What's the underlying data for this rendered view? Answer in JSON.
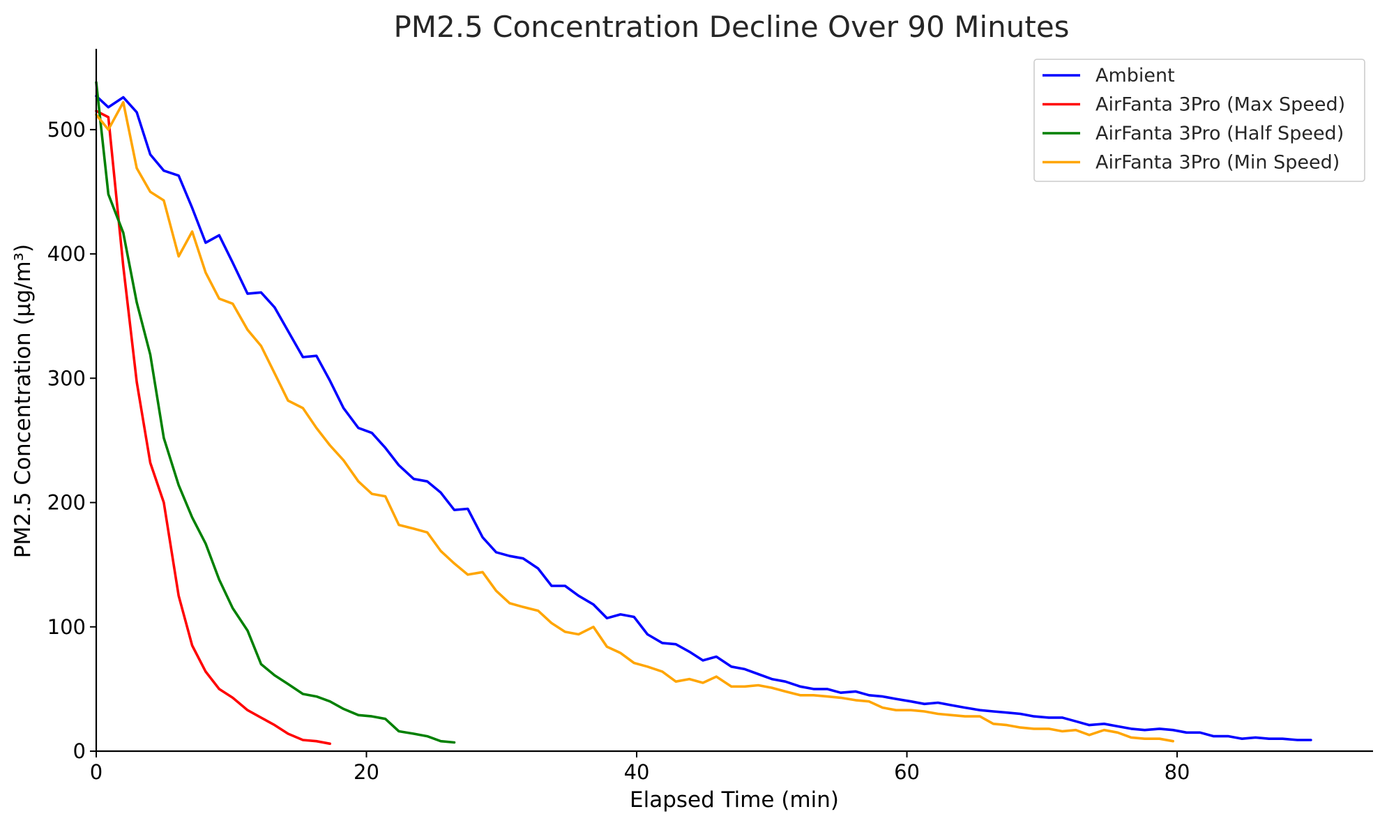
{
  "chart_data": {
    "type": "line",
    "title": "PM2.5 Concentration Decline Over 90 Minutes",
    "xlabel": "Elapsed Time (min)",
    "ylabel": "PM2.5 Concentration (µg/m³)",
    "xlim": [
      0,
      94.5
    ],
    "ylim": [
      0,
      565
    ],
    "xticks": [
      0,
      20,
      40,
      60,
      80
    ],
    "yticks": [
      0,
      100,
      200,
      300,
      400,
      500
    ],
    "grid": false,
    "legend_position": "top-right",
    "series": [
      {
        "name": "Ambient",
        "color": "#0000ff",
        "x": [
          0,
          0.9,
          2.0,
          3.0,
          4.0,
          5.0,
          6.1,
          7.1,
          8.1,
          9.1,
          10.1,
          11.2,
          12.2,
          13.2,
          14.2,
          15.3,
          16.3,
          17.3,
          18.3,
          19.4,
          20.4,
          21.4,
          22.4,
          23.5,
          24.5,
          25.5,
          26.5,
          27.5,
          28.6,
          29.6,
          30.6,
          31.6,
          32.7,
          33.7,
          34.7,
          35.7,
          36.8,
          37.8,
          38.8,
          39.8,
          40.8,
          41.9,
          42.9,
          43.9,
          44.9,
          45.9,
          47.0,
          48.0,
          49.0,
          50.0,
          51.0,
          52.1,
          53.1,
          54.1,
          55.1,
          56.2,
          57.2,
          58.2,
          59.2,
          60.3,
          61.3,
          62.3,
          63.3,
          64.3,
          65.4,
          66.4,
          67.4,
          68.4,
          69.4,
          70.5,
          71.5,
          72.5,
          73.5,
          74.6,
          75.6,
          76.6,
          77.6,
          78.7,
          79.7,
          80.7,
          81.7,
          82.7,
          83.8,
          84.8,
          85.8,
          86.8,
          87.8,
          88.9,
          89.9
        ],
        "values": [
          527,
          518,
          526,
          514,
          480,
          467,
          463,
          437,
          409,
          415,
          393,
          368,
          369,
          357,
          338,
          317,
          318,
          298,
          276,
          260,
          256,
          244,
          230,
          219,
          217,
          208,
          194,
          195,
          172,
          160,
          157,
          155,
          147,
          133,
          133,
          125,
          118,
          107,
          110,
          108,
          94,
          87,
          86,
          80,
          73,
          76,
          68,
          66,
          62,
          58,
          56,
          52,
          50,
          50,
          47,
          48,
          45,
          44,
          42,
          40,
          38,
          39,
          37,
          35,
          33,
          32,
          31,
          30,
          28,
          27,
          27,
          24,
          21,
          22,
          20,
          18,
          17,
          18,
          17,
          15,
          15,
          12,
          12,
          10,
          11,
          10,
          10,
          9,
          9
        ]
      },
      {
        "name": "AirFanta 3Pro (Max Speed)",
        "color": "#ff0000",
        "x": [
          0,
          0.9,
          2.0,
          3.0,
          4.0,
          5.0,
          6.1,
          7.1,
          8.1,
          9.1,
          10.1,
          11.2,
          12.2,
          13.2,
          14.2,
          15.3,
          16.3,
          17.3
        ],
        "values": [
          515,
          510,
          390,
          297,
          232,
          200,
          125,
          85,
          64,
          50,
          43,
          33,
          27,
          21,
          14,
          9,
          8,
          6
        ]
      },
      {
        "name": "AirFanta 3Pro (Half Speed)",
        "color": "#008000",
        "x": [
          0,
          0.9,
          2.0,
          3.0,
          4.0,
          5.0,
          6.1,
          7.1,
          8.1,
          9.1,
          10.1,
          11.2,
          12.2,
          13.2,
          14.2,
          15.3,
          16.3,
          17.3,
          18.3,
          19.4,
          20.4,
          21.4,
          22.4,
          23.5,
          24.5,
          25.5,
          26.5
        ],
        "values": [
          538,
          448,
          417,
          361,
          319,
          252,
          214,
          188,
          167,
          138,
          115,
          97,
          70,
          61,
          54,
          46,
          44,
          40,
          34,
          29,
          28,
          26,
          16,
          14,
          12,
          8,
          7
        ]
      },
      {
        "name": "AirFanta 3Pro (Min Speed)",
        "color": "#ffa500",
        "x": [
          0,
          0.9,
          2.0,
          3.0,
          4.0,
          5.0,
          6.1,
          7.1,
          8.1,
          9.1,
          10.1,
          11.2,
          12.2,
          13.2,
          14.2,
          15.3,
          16.3,
          17.3,
          18.3,
          19.4,
          20.4,
          21.4,
          22.4,
          23.5,
          24.5,
          25.5,
          26.5,
          27.5,
          28.6,
          29.6,
          30.6,
          31.6,
          32.7,
          33.7,
          34.7,
          35.7,
          36.8,
          37.8,
          38.8,
          39.8,
          40.8,
          41.9,
          42.9,
          43.9,
          44.9,
          45.9,
          47.0,
          48.0,
          49.0,
          50.0,
          51.0,
          52.1,
          53.1,
          54.1,
          55.1,
          56.2,
          57.2,
          58.2,
          59.2,
          60.3,
          61.3,
          62.3,
          63.3,
          64.3,
          65.4,
          66.4,
          67.4,
          68.4,
          69.4,
          70.5,
          71.5,
          72.5,
          73.5,
          74.6,
          75.6,
          76.6,
          77.6,
          78.7,
          79.7
        ],
        "values": [
          512,
          500,
          522,
          469,
          450,
          443,
          398,
          418,
          385,
          364,
          360,
          339,
          326,
          304,
          282,
          276,
          260,
          246,
          234,
          217,
          207,
          205,
          182,
          179,
          176,
          161,
          151,
          142,
          144,
          129,
          119,
          116,
          113,
          103,
          96,
          94,
          100,
          84,
          79,
          71,
          68,
          64,
          56,
          58,
          55,
          60,
          52,
          52,
          53,
          51,
          48,
          45,
          45,
          44,
          43,
          41,
          40,
          35,
          33,
          33,
          32,
          30,
          29,
          28,
          28,
          22,
          21,
          19,
          18,
          18,
          16,
          17,
          13,
          17,
          15,
          11,
          10,
          10,
          8
        ]
      }
    ]
  }
}
